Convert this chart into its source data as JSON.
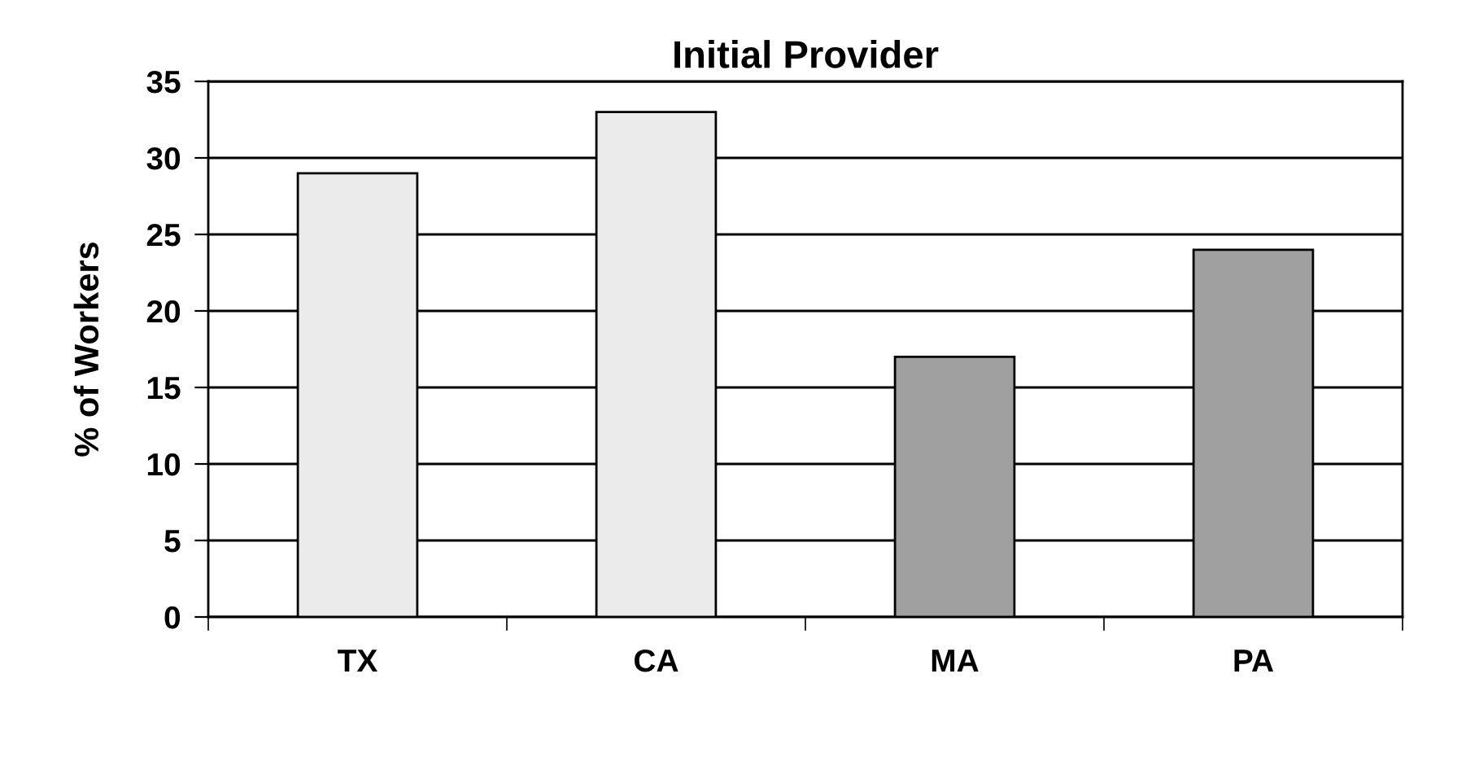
{
  "chart_data": {
    "type": "bar",
    "title": "Initial Provider",
    "ylabel": "% of Workers",
    "categories": [
      "TX",
      "CA",
      "MA",
      "PA"
    ],
    "values": [
      29,
      33,
      17,
      24
    ],
    "colors": [
      "#ebebeb",
      "#ebebeb",
      "#a0a0a0",
      "#a0a0a0"
    ],
    "ylim": [
      0,
      35
    ],
    "yticks": [
      0,
      5,
      10,
      15,
      20,
      25,
      30,
      35
    ],
    "grid": "y"
  }
}
